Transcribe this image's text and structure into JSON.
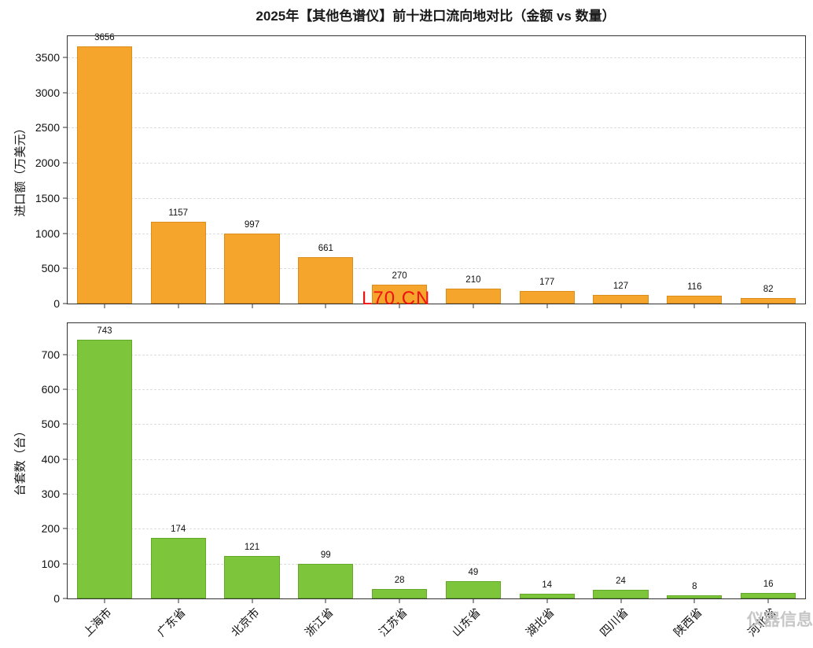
{
  "title": "2025年【其他色谱仪】前十进口流向地对比（金额 vs 数量）",
  "watermarks": {
    "center": "L70.CN",
    "corner": "仪器信息网"
  },
  "chart_data": [
    {
      "type": "bar",
      "title": "2025年【其他色谱仪】前十进口流向地对比（金额 vs 数量）",
      "categories": [
        "上海市",
        "广东省",
        "北京市",
        "浙江省",
        "江苏省",
        "山东省",
        "湖北省",
        "四川省",
        "陕西省",
        "河北省"
      ],
      "values": [
        3656,
        1157,
        997,
        661,
        270,
        210,
        177,
        127,
        116,
        82
      ],
      "xlabel": "",
      "ylabel": "进口额（万美元）",
      "ylim": [
        0,
        3800
      ],
      "yticks": [
        0,
        500,
        1000,
        1500,
        2000,
        2500,
        3000,
        3500
      ],
      "grid": "horizontal-dashed",
      "legend": "none",
      "bar_color": "#F5A42C",
      "bar_edge_color": "#DB8F1A"
    },
    {
      "type": "bar",
      "title": "",
      "categories": [
        "上海市",
        "广东省",
        "北京市",
        "浙江省",
        "江苏省",
        "山东省",
        "湖北省",
        "四川省",
        "陕西省",
        "河北省"
      ],
      "values": [
        743,
        174,
        121,
        99,
        28,
        49,
        14,
        24,
        8,
        16
      ],
      "xlabel": "",
      "ylabel": "台套数（台）",
      "ylim": [
        0,
        790
      ],
      "yticks": [
        0,
        100,
        200,
        300,
        400,
        500,
        600,
        700
      ],
      "grid": "horizontal-dashed",
      "legend": "none",
      "bar_color": "#7DC63C",
      "bar_edge_color": "#64A82A"
    }
  ]
}
